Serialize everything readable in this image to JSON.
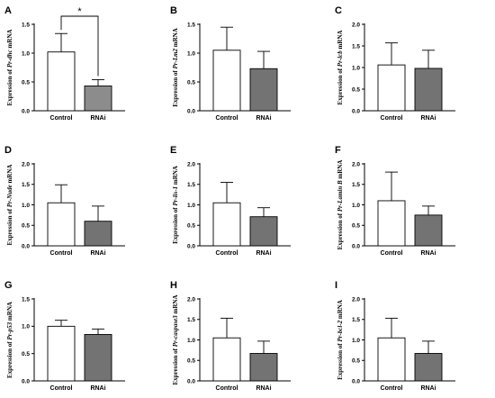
{
  "chart_data": [
    {
      "type": "bar",
      "panel": "A",
      "gene_prefix": "Pr-",
      "gene_name": "dhc",
      "gene_suffix": "",
      "ylabel_suffix": " mRNA",
      "categories": [
        "Control",
        "RNAi"
      ],
      "values": [
        1.02,
        0.43
      ],
      "errors": [
        0.32,
        0.11
      ],
      "colors": [
        "#ffffff",
        "#8c8c8c"
      ],
      "ylim": [
        0,
        1.5
      ],
      "yticks": [
        "0.0",
        "0.5",
        "1.0",
        "1.5"
      ],
      "significance": "*"
    },
    {
      "type": "bar",
      "panel": "B",
      "gene_prefix": "Pr-",
      "gene_name": "Lm",
      "gene_suffix": "2",
      "ylabel_suffix": " mRNA",
      "categories": [
        "Control",
        "RNAi"
      ],
      "values": [
        1.05,
        0.73
      ],
      "errors": [
        0.4,
        0.3
      ],
      "colors": [
        "#ffffff",
        "#737373"
      ],
      "ylim": [
        0,
        1.5
      ],
      "yticks": [
        "0.0",
        "0.5",
        "1.0",
        "1.5"
      ],
      "significance": ""
    },
    {
      "type": "bar",
      "panel": "C",
      "gene_prefix": "Pr-",
      "gene_name": "lcb",
      "gene_suffix": "",
      "ylabel_suffix": " mRNA",
      "categories": [
        "Control",
        "RNAi"
      ],
      "values": [
        1.06,
        0.98
      ],
      "errors": [
        0.51,
        0.42
      ],
      "colors": [
        "#ffffff",
        "#737373"
      ],
      "ylim": [
        0,
        2.0
      ],
      "yticks": [
        "0.0",
        "0.5",
        "1.0",
        "1.5",
        "2.0"
      ],
      "significance": ""
    },
    {
      "type": "bar",
      "panel": "D",
      "gene_prefix": "Pr-",
      "gene_name": "Nude",
      "gene_suffix": "",
      "ylabel_suffix": " mRNA",
      "categories": [
        "Control",
        "RNAi"
      ],
      "values": [
        1.05,
        0.6
      ],
      "errors": [
        0.44,
        0.37
      ],
      "colors": [
        "#ffffff",
        "#737373"
      ],
      "ylim": [
        0,
        2.0
      ],
      "yticks": [
        "0.0",
        "0.5",
        "1.0",
        "1.5",
        "2.0"
      ],
      "significance": ""
    },
    {
      "type": "bar",
      "panel": "E",
      "gene_prefix": "Pr-",
      "gene_name": "lis",
      "gene_suffix": "-1",
      "ylabel_suffix": " mRNA",
      "categories": [
        "Control",
        "RNAi"
      ],
      "values": [
        1.05,
        0.71
      ],
      "errors": [
        0.5,
        0.22
      ],
      "colors": [
        "#ffffff",
        "#737373"
      ],
      "ylim": [
        0,
        2.0
      ],
      "yticks": [
        "0.0",
        "0.5",
        "1.0",
        "1.5",
        "2.0"
      ],
      "significance": ""
    },
    {
      "type": "bar",
      "panel": "F",
      "gene_prefix": "Pr-",
      "gene_name": "Lamin B",
      "gene_suffix": "",
      "ylabel_suffix": " mRNA",
      "categories": [
        "Control",
        "RNAi"
      ],
      "values": [
        1.1,
        0.75
      ],
      "errors": [
        0.7,
        0.22
      ],
      "colors": [
        "#ffffff",
        "#737373"
      ],
      "ylim": [
        0,
        2.0
      ],
      "yticks": [
        "0.0",
        "0.5",
        "1.0",
        "1.5",
        "2.0"
      ],
      "significance": ""
    },
    {
      "type": "bar",
      "panel": "G",
      "gene_prefix": "Pr-",
      "gene_name": "p53",
      "gene_suffix": "",
      "ylabel_suffix": " mRNA",
      "categories": [
        "Control",
        "RNAi"
      ],
      "values": [
        1.0,
        0.85
      ],
      "errors": [
        0.11,
        0.1
      ],
      "colors": [
        "#ffffff",
        "#737373"
      ],
      "ylim": [
        0,
        1.5
      ],
      "yticks": [
        "0.0",
        "0.5",
        "1.0",
        "1.5"
      ],
      "significance": ""
    },
    {
      "type": "bar",
      "panel": "H",
      "gene_prefix": "Pr-",
      "gene_name": "caspase",
      "gene_suffix": "3",
      "ylabel_suffix": " mRNA",
      "categories": [
        "Control",
        "RNAi"
      ],
      "values": [
        1.05,
        0.67
      ],
      "errors": [
        0.48,
        0.3
      ],
      "colors": [
        "#ffffff",
        "#737373"
      ],
      "ylim": [
        0,
        2.0
      ],
      "yticks": [
        "0.0",
        "0.5",
        "1.0",
        "1.5",
        "2.0"
      ],
      "significance": ""
    },
    {
      "type": "bar",
      "panel": "I",
      "gene_prefix": "Pr-",
      "gene_name": "bcl",
      "gene_suffix": "-2",
      "ylabel_suffix": " mRNA",
      "categories": [
        "Control",
        "RNAi"
      ],
      "values": [
        1.05,
        0.67
      ],
      "errors": [
        0.48,
        0.3
      ],
      "colors": [
        "#ffffff",
        "#737373"
      ],
      "ylim": [
        0,
        2.0
      ],
      "yticks": [
        "0.0",
        "0.5",
        "1.0",
        "1.5",
        "2.0"
      ],
      "significance": ""
    }
  ],
  "ylabel_prefix": "Expression of "
}
